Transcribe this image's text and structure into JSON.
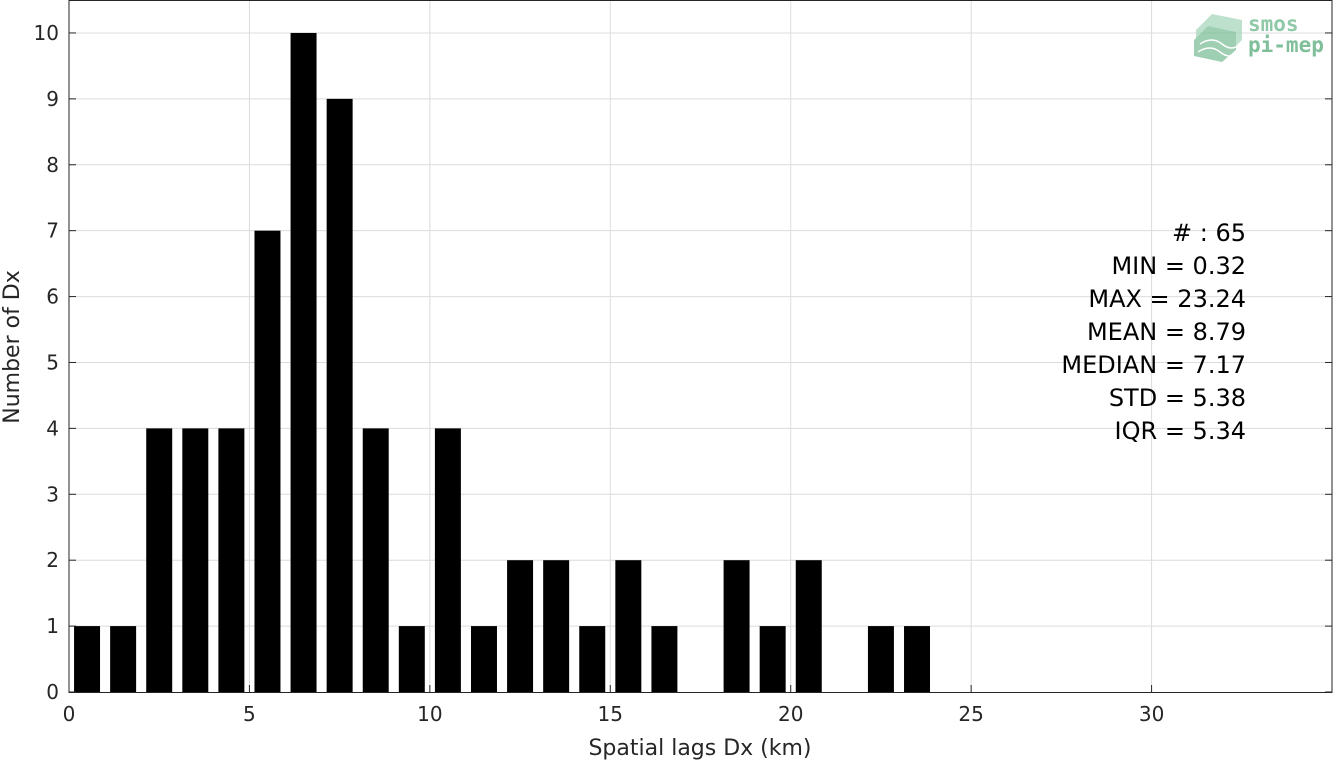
{
  "chart_data": {
    "type": "bar",
    "xlabel": "Spatial lags Dx (km)",
    "ylabel": "Number of Dx",
    "xlim": [
      0,
      35
    ],
    "ylim": [
      0,
      10.5
    ],
    "x_ticks": [
      0,
      5,
      10,
      15,
      20,
      25,
      30
    ],
    "y_ticks": [
      0,
      1,
      2,
      3,
      4,
      5,
      6,
      7,
      8,
      9,
      10
    ],
    "grid": true,
    "bar_color": "#000000",
    "bin_width": 1,
    "x": [
      0.5,
      1.5,
      2.5,
      3.5,
      4.5,
      5.5,
      6.5,
      7.5,
      8.5,
      9.5,
      10.5,
      11.5,
      12.5,
      13.5,
      14.5,
      15.5,
      16.5,
      17.5,
      18.5,
      19.5,
      20.5,
      21.5,
      22.5,
      23.5
    ],
    "values": [
      1,
      1,
      4,
      4,
      4,
      7,
      10,
      9,
      4,
      1,
      4,
      1,
      2,
      2,
      1,
      2,
      1,
      0,
      2,
      1,
      2,
      0,
      1,
      1
    ],
    "stats": [
      "# : 65",
      "MIN = 0.32",
      "MAX =  23.24",
      "MEAN = 8.79",
      "MEDIAN = 7.17",
      "STD = 5.38",
      "IQR = 5.34"
    ]
  },
  "logo": {
    "line1": "smos",
    "line2": "pi-mep",
    "color": "#7fbf9a"
  }
}
